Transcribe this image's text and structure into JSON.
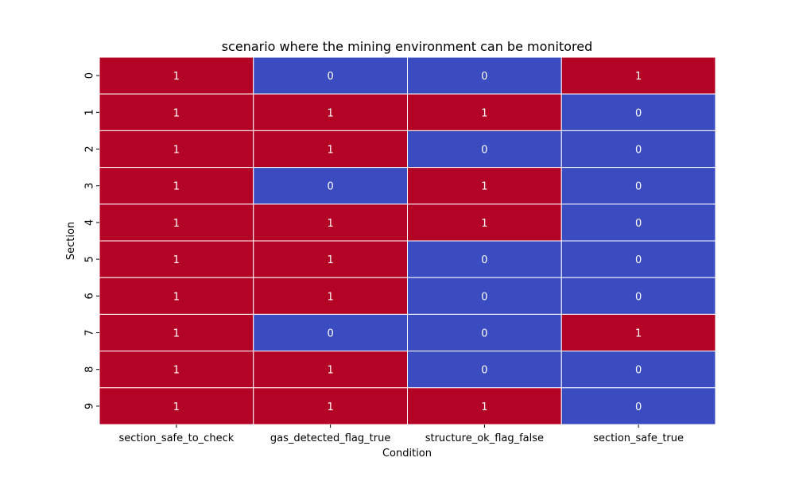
{
  "chart_data": {
    "type": "heatmap",
    "title": "scenario where the mining environment can be monitored",
    "xlabel": "Condition",
    "ylabel": "Section",
    "columns": [
      "section_safe_to_check",
      "gas_detected_flag_true",
      "structure_ok_flag_false",
      "section_safe_true"
    ],
    "rows": [
      "0",
      "1",
      "2",
      "3",
      "4",
      "5",
      "6",
      "7",
      "8",
      "9"
    ],
    "values": [
      [
        1,
        0,
        0,
        1
      ],
      [
        1,
        1,
        1,
        0
      ],
      [
        1,
        1,
        0,
        0
      ],
      [
        1,
        0,
        1,
        0
      ],
      [
        1,
        1,
        1,
        0
      ],
      [
        1,
        1,
        0,
        0
      ],
      [
        1,
        1,
        0,
        0
      ],
      [
        1,
        0,
        0,
        1
      ],
      [
        1,
        1,
        0,
        0
      ],
      [
        1,
        1,
        1,
        0
      ]
    ],
    "annotated": true,
    "colorbar": false,
    "colors": {
      "high": "#b40426",
      "low": "#3b4cc0",
      "cell_border": "#ffffff",
      "annotation": "#ffffff"
    }
  }
}
